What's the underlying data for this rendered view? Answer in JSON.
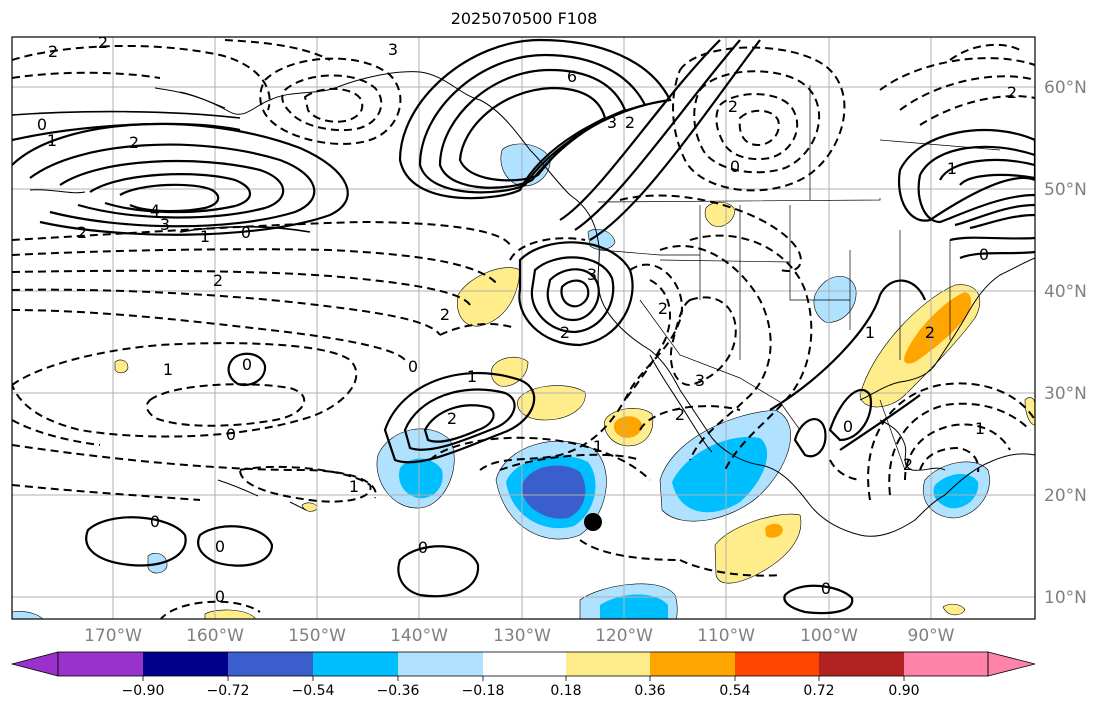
{
  "title": "2025070500 F108",
  "map": {
    "lon_labels": [
      "170°W",
      "160°W",
      "150°W",
      "140°W",
      "130°W",
      "120°W",
      "110°W",
      "100°W",
      "90°W"
    ],
    "lat_labels": [
      "60°N",
      "50°N",
      "40°N",
      "30°N",
      "20°N",
      "10°N"
    ],
    "contour_labels": [
      "2",
      "2",
      "3",
      "6",
      "3",
      "2",
      "0",
      "1",
      "2",
      "4",
      "3",
      "0",
      "2",
      "1",
      "0",
      "2",
      "2",
      "2",
      "3",
      "2",
      "2",
      "0",
      "1",
      "1",
      "0",
      "0",
      "2",
      "2",
      "1",
      "3",
      "1",
      "2",
      "1",
      "1",
      "0",
      "0",
      "0",
      "0",
      "2",
      "1",
      "0",
      "0",
      "2",
      "0"
    ],
    "marker": "point"
  },
  "colorbar": {
    "ticks": [
      "−0.90",
      "−0.72",
      "−0.54",
      "−0.36",
      "−0.18",
      "0.18",
      "0.36",
      "0.54",
      "0.72",
      "0.90"
    ],
    "colors": [
      "#9932cc",
      "#00008b",
      "#3a5fcd",
      "#00bfff",
      "#b0e2ff",
      "#ffffff",
      "#ffec8b",
      "#ffa500",
      "#ff4500",
      "#b22222",
      "#ff82ab"
    ]
  }
}
